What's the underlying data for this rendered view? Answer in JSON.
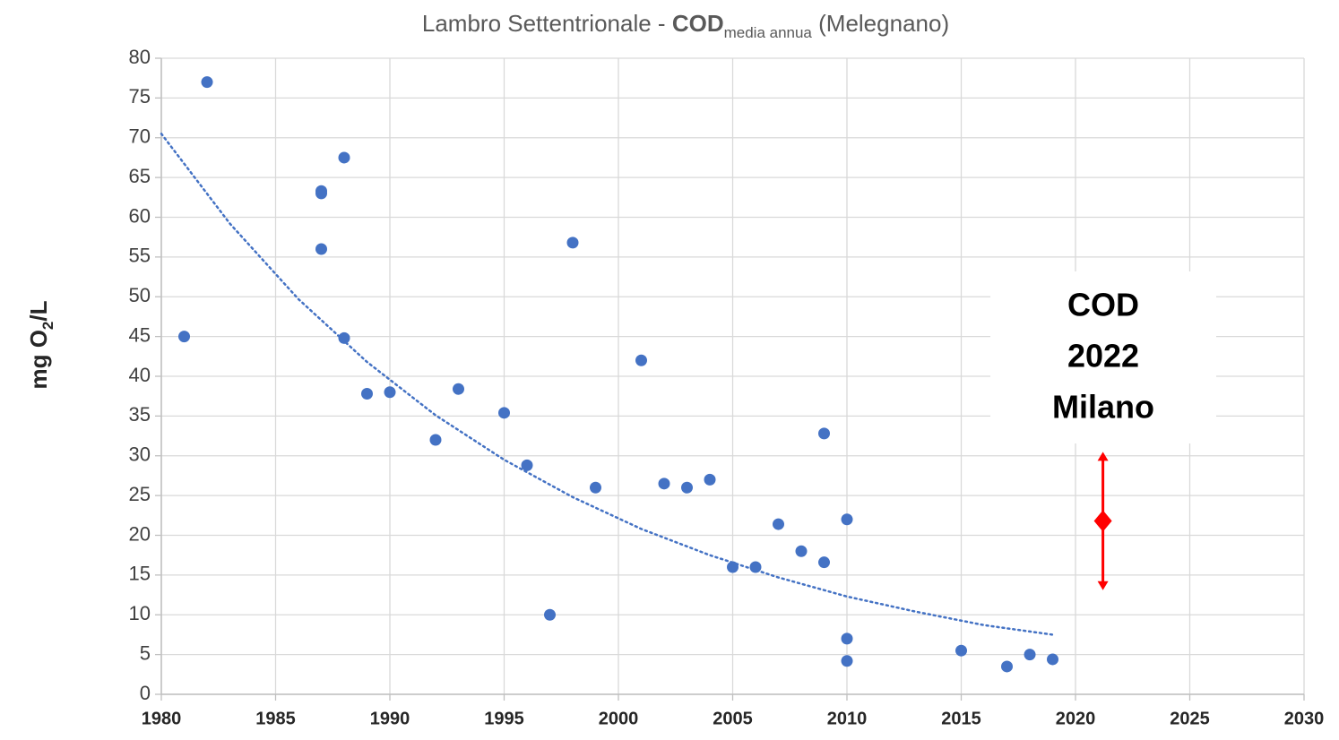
{
  "chart_data": {
    "type": "scatter",
    "title": [
      "Lambro Settentrionale - ",
      "COD",
      "media annua",
      " (Melegnano)"
    ],
    "title_styles": [
      "normal",
      "bold",
      "sub",
      "normal"
    ],
    "y_label": [
      "mg O",
      "2",
      "/L"
    ],
    "y_label_styles": [
      "normal",
      "sub",
      "normal"
    ],
    "x": [
      1981,
      1982,
      1987,
      1987,
      1987,
      1988,
      1988,
      1989,
      1990,
      1992,
      1993,
      1995,
      1996,
      1997,
      1998,
      1999,
      2001,
      2002,
      2003,
      2004,
      2005,
      2006,
      2007,
      2008,
      2009,
      2009,
      2010,
      2010,
      2010,
      2015,
      2017,
      2018,
      2019
    ],
    "values": [
      45,
      77,
      63.3,
      63,
      56,
      67.5,
      44.8,
      37.8,
      38,
      32,
      38.4,
      35.4,
      28.8,
      10,
      56.8,
      26,
      42,
      26.5,
      26,
      27,
      16,
      16,
      21.4,
      18,
      32.8,
      16.6,
      22,
      7,
      4.2,
      5.5,
      3.5,
      5,
      4.4
    ],
    "color": "#4472c4",
    "trendline": {
      "x": [
        1980,
        1983,
        1986,
        1989,
        1992,
        1995,
        1998,
        2001,
        2004,
        2007,
        2010,
        2013,
        2016,
        2019
      ],
      "values": [
        70.5,
        59.2,
        49.7,
        41.8,
        35.1,
        29.5,
        24.8,
        20.8,
        17.5,
        14.7,
        12.3,
        10.4,
        8.7,
        7.5
      ],
      "color": "#4472c4"
    },
    "highlight": {
      "x": 2021.2,
      "value": 21.8,
      "error": 8.7,
      "color": "#ff0000"
    },
    "annotation": [
      "COD",
      "2022",
      "Milano"
    ],
    "xlim": [
      1980,
      2030
    ],
    "xticks": [
      1980,
      1985,
      1990,
      1995,
      2000,
      2005,
      2010,
      2015,
      2020,
      2025,
      2030
    ],
    "ylim": [
      0,
      80
    ],
    "yticks": [
      0,
      5,
      10,
      15,
      20,
      25,
      30,
      35,
      40,
      45,
      50,
      55,
      60,
      65,
      70,
      75,
      80
    ],
    "grid": true
  }
}
